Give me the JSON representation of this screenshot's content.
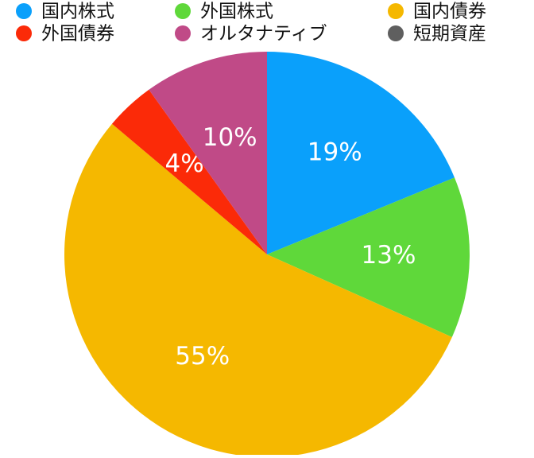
{
  "chart_data": {
    "type": "pie",
    "categories": [
      "国内株式",
      "外国株式",
      "国内債券",
      "外国債券",
      "オルタナティブ",
      "短期資産"
    ],
    "values": [
      19,
      13,
      55,
      4,
      10,
      0
    ],
    "value_labels": [
      "19%",
      "13%",
      "55%",
      "4%",
      "10%",
      null
    ],
    "colors": [
      "#0aa0fb",
      "#5fd83a",
      "#f5b800",
      "#fb2a08",
      "#c04a87",
      "#5f5f5f"
    ]
  }
}
